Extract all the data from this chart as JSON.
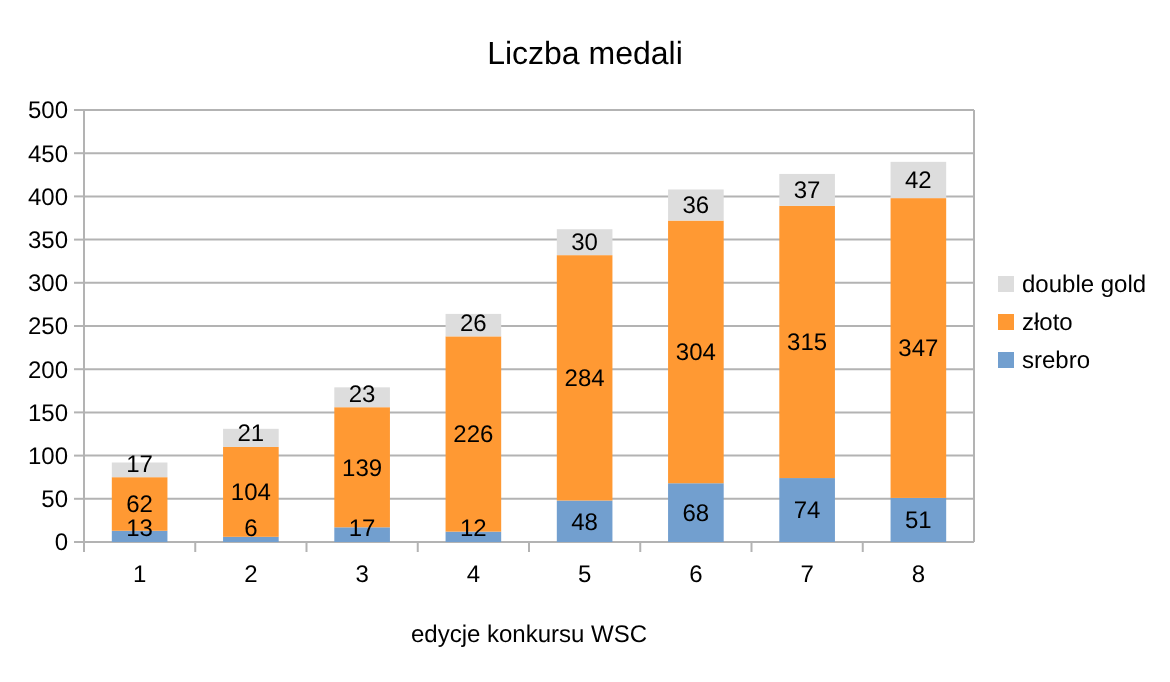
{
  "chart_data": {
    "type": "bar",
    "title": "Liczba medali",
    "xlabel": "edycje konkursu WSC",
    "categories": [
      "1",
      "2",
      "3",
      "4",
      "5",
      "6",
      "7",
      "8"
    ],
    "stacked": true,
    "data_labels": true,
    "grid": "y",
    "legend": "right",
    "ylim": [
      0,
      500
    ],
    "yticks": [
      0,
      50,
      100,
      150,
      200,
      250,
      300,
      350,
      400,
      450,
      500
    ],
    "series": [
      {
        "name": "srebro",
        "color": "#729fcf",
        "values": [
          13,
          6,
          17,
          12,
          48,
          68,
          74,
          51
        ]
      },
      {
        "name": "złoto",
        "color": "#ff9933",
        "values": [
          62,
          104,
          139,
          226,
          284,
          304,
          315,
          347
        ]
      },
      {
        "name": "double gold",
        "color": "#dddddd",
        "values": [
          17,
          21,
          23,
          26,
          30,
          36,
          37,
          42
        ]
      }
    ]
  }
}
